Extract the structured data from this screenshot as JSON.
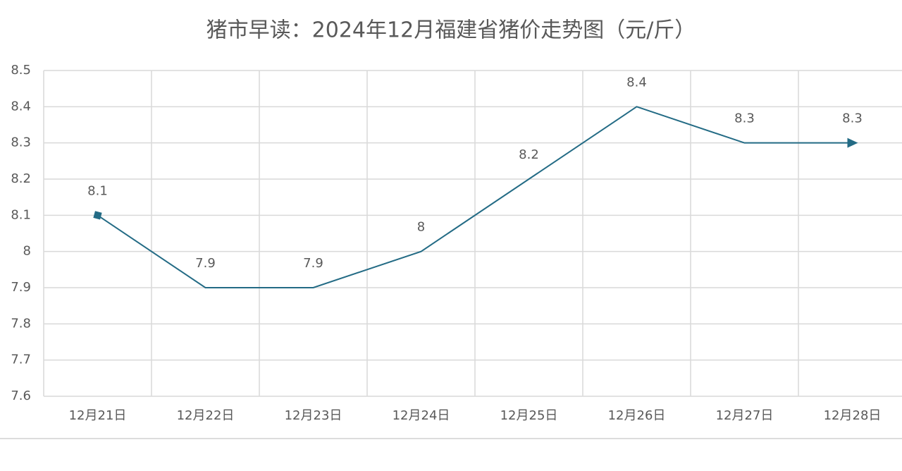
{
  "chart_data": {
    "type": "line",
    "title": "猪市早读：2024年12月福建省猪价走势图（元/斤）",
    "categories": [
      "12月21日",
      "12月22日",
      "12月23日",
      "12月24日",
      "12月25日",
      "12月26日",
      "12月27日",
      "12月28日"
    ],
    "values": [
      8.1,
      7.9,
      7.9,
      8,
      8.2,
      8.4,
      8.3,
      8.3
    ],
    "color": "#236b85",
    "ylim": [
      7.6,
      8.5
    ],
    "yticks": [
      7.6,
      7.7,
      7.8,
      7.9,
      8,
      8.1,
      8.2,
      8.3,
      8.4,
      8.5
    ],
    "grid": true
  }
}
